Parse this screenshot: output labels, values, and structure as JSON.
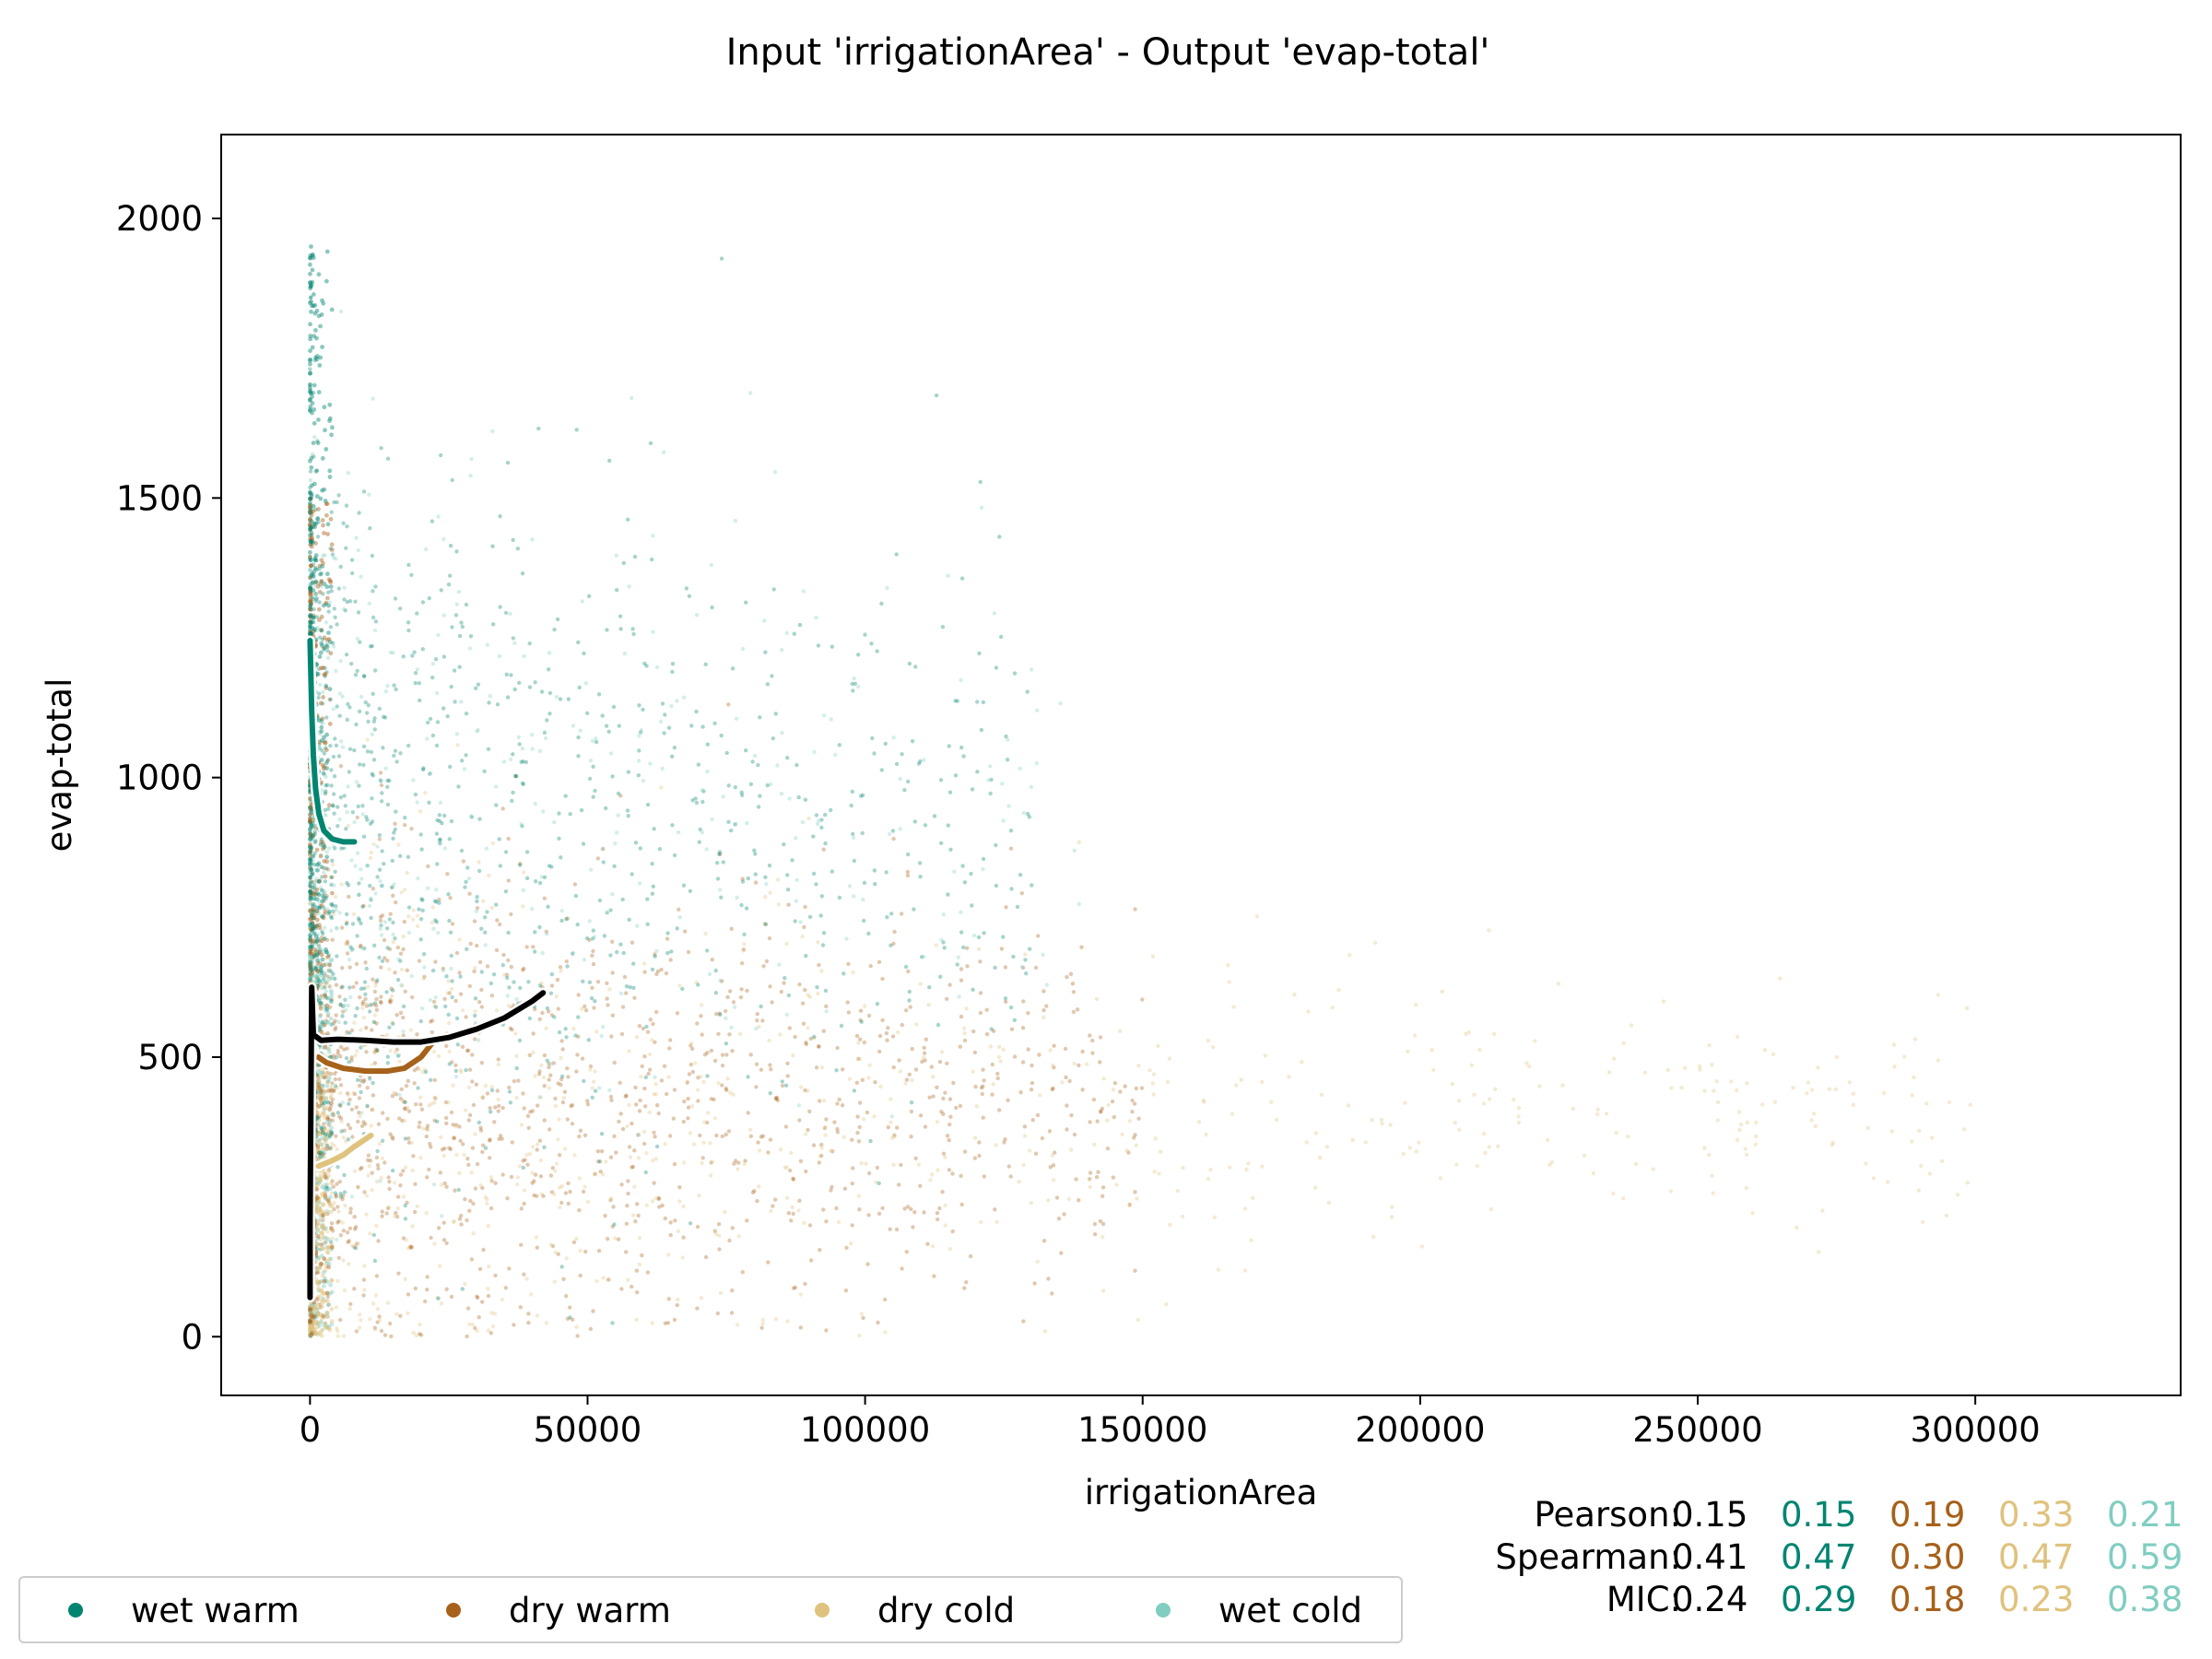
{
  "chart_data": {
    "type": "scatter",
    "title": "Input 'irrigationArea' - Output 'evap-total'",
    "xlabel": "irrigationArea",
    "ylabel": "evap-total",
    "xlim": [
      -16000,
      337000
    ],
    "ylim": [
      -105,
      2150
    ],
    "xticks": [
      0,
      50000,
      100000,
      150000,
      200000,
      250000,
      300000
    ],
    "xtick_labels": [
      "0",
      "50000",
      "100000",
      "150000",
      "200000",
      "250000",
      "300000"
    ],
    "yticks": [
      0,
      500,
      1000,
      1500,
      2000
    ],
    "ytick_labels": [
      "0",
      "500",
      "1000",
      "1500",
      "2000"
    ],
    "grid": false,
    "legend_position": "bottom-left",
    "series": [
      {
        "name": "wet warm",
        "color": "#018571",
        "trend": [
          [
            0,
            1245
          ],
          [
            300,
            1120
          ],
          [
            600,
            1040
          ],
          [
            1000,
            980
          ],
          [
            1600,
            935
          ],
          [
            2500,
            905
          ],
          [
            4000,
            890
          ],
          [
            6000,
            885
          ],
          [
            8000,
            885
          ]
        ]
      },
      {
        "name": "dry warm",
        "color": "#a6611a",
        "trend": [
          [
            1500,
            500
          ],
          [
            3000,
            490
          ],
          [
            6000,
            480
          ],
          [
            10000,
            475
          ],
          [
            14000,
            475
          ],
          [
            17000,
            480
          ],
          [
            20000,
            500
          ],
          [
            22000,
            525
          ]
        ]
      },
      {
        "name": "dry cold",
        "color": "#dfc27d",
        "trend": [
          [
            1500,
            305
          ],
          [
            4000,
            315
          ],
          [
            6000,
            325
          ],
          [
            8000,
            340
          ],
          [
            11000,
            360
          ]
        ]
      },
      {
        "name": "wet cold",
        "color": "#80cdc1",
        "trend": [
          [
            0,
            225
          ],
          [
            0,
            300
          ],
          [
            0,
            400
          ],
          [
            0,
            470
          ],
          [
            300,
            505
          ],
          [
            700,
            515
          ]
        ]
      }
    ],
    "overall_trend": {
      "color": "#000000",
      "points": [
        [
          0,
          70
        ],
        [
          0,
          200
        ],
        [
          300,
          625
        ],
        [
          600,
          540
        ],
        [
          2000,
          530
        ],
        [
          5000,
          532
        ],
        [
          10000,
          530
        ],
        [
          15000,
          527
        ],
        [
          20000,
          527
        ],
        [
          25000,
          535
        ],
        [
          30000,
          550
        ],
        [
          35000,
          570
        ],
        [
          40000,
          600
        ],
        [
          42000,
          615
        ]
      ]
    },
    "stats": [
      {
        "label": "Pearson:",
        "values": [
          "0.15",
          "0.15",
          "0.19",
          "0.33",
          "0.21"
        ]
      },
      {
        "label": "Spearman:",
        "values": [
          "0.41",
          "0.47",
          "0.30",
          "0.47",
          "0.59"
        ]
      },
      {
        "label": "MIC:",
        "values": [
          "0.24",
          "0.29",
          "0.18",
          "0.23",
          "0.38"
        ]
      }
    ],
    "stat_colors": [
      "#000000",
      "#018571",
      "#a6611a",
      "#dfc27d",
      "#80cdc1"
    ]
  }
}
